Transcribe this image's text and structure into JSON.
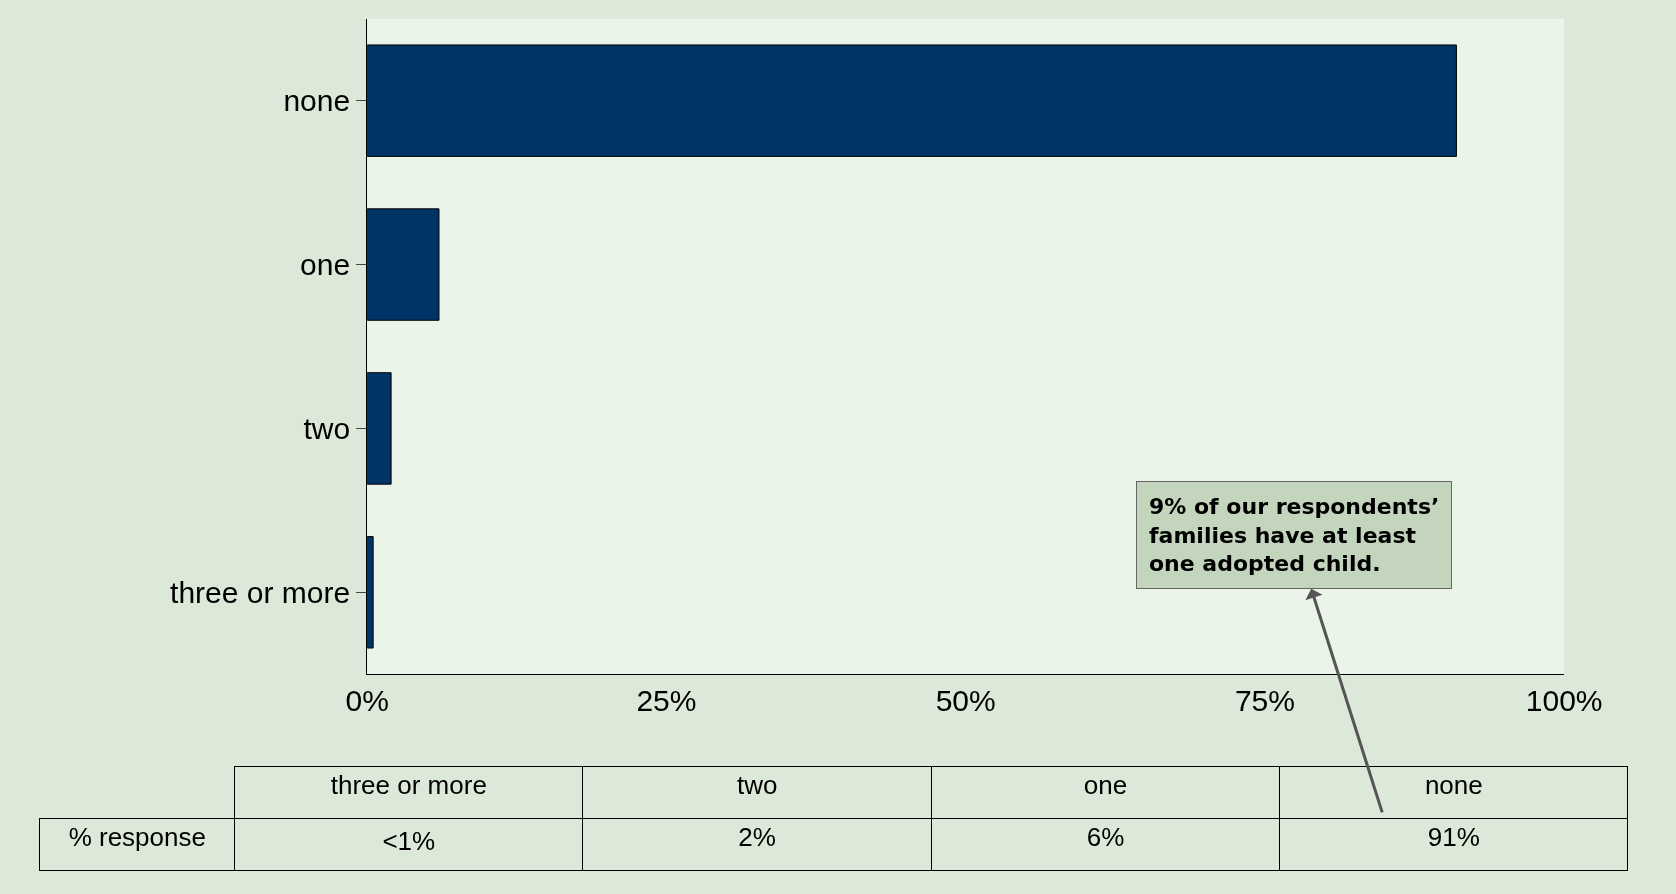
{
  "chart_data": {
    "type": "bar",
    "orientation": "horizontal",
    "categories": [
      "none",
      "one",
      "two",
      "three or more"
    ],
    "values": [
      91,
      6,
      2,
      0.5
    ],
    "color": "#003366",
    "xlim": [
      0,
      100
    ],
    "xticks": [
      {
        "value": 0,
        "label": "0%"
      },
      {
        "value": 25,
        "label": "25%"
      },
      {
        "value": 50,
        "label": "50%"
      },
      {
        "value": 75,
        "label": "75%"
      },
      {
        "value": 100,
        "label": "100%"
      }
    ],
    "grid": false,
    "annotations": [
      "% response",
      "<1%",
      "2%",
      "6%",
      "91%",
      "9% of our respondents’ families have at least one adopted child."
    ]
  }
}
